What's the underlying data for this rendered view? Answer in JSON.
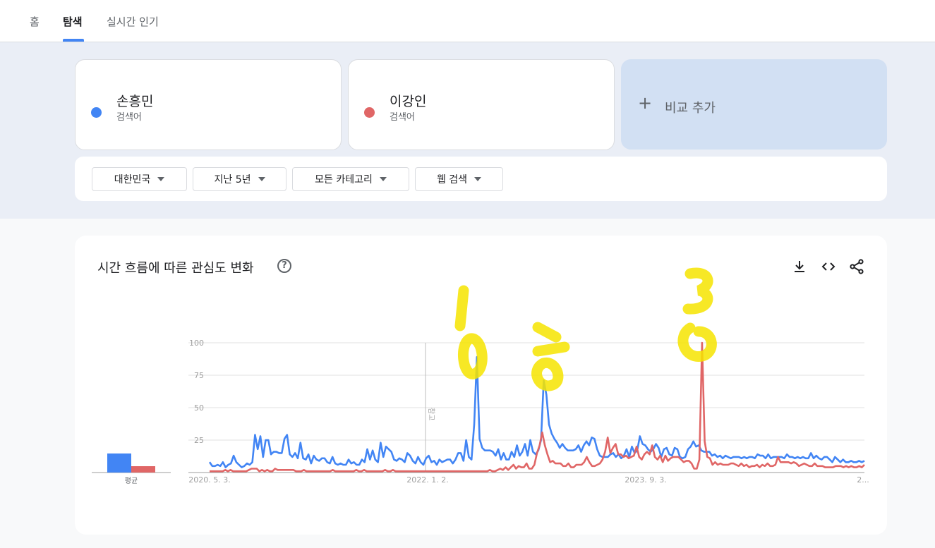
{
  "nav": {
    "tabs": [
      {
        "label": "홈"
      },
      {
        "label": "탐색"
      },
      {
        "label": "실시간 인기"
      }
    ]
  },
  "terms": [
    {
      "name": "손흥민",
      "sub": "검색어",
      "color": "#4285f4"
    },
    {
      "name": "이강인",
      "sub": "검색어",
      "color": "#e06666"
    }
  ],
  "add_compare": {
    "label": "비교 추가"
  },
  "filters": [
    {
      "label": "대한민국"
    },
    {
      "label": "지난 5년"
    },
    {
      "label": "모든 카테고리"
    },
    {
      "label": "웹 검색"
    }
  ],
  "chart": {
    "title": "시간 흐름에 따른 관심도 변화",
    "avg_label": "평균",
    "note_label": "참고"
  },
  "annotations": [
    "1",
    "2",
    "3"
  ],
  "chart_data": {
    "type": "line",
    "x_tick_labels": [
      "2020. 5. 3.",
      "2022. 1. 2.",
      "2023. 9. 3.",
      "2..."
    ],
    "y_ticks": [
      100,
      75,
      50,
      25
    ],
    "ylim": [
      0,
      100
    ],
    "grid": true,
    "averages": [
      {
        "name": "손흥민",
        "value": 15
      },
      {
        "name": "이강인",
        "value": 5
      }
    ],
    "series": [
      {
        "name": "손흥민",
        "color": "#4285f4",
        "values": [
          8,
          5,
          5,
          6,
          5,
          8,
          4,
          6,
          7,
          13,
          8,
          6,
          4,
          5,
          7,
          6,
          8,
          29,
          18,
          28,
          12,
          25,
          25,
          14,
          16,
          16,
          15,
          15,
          26,
          29,
          14,
          12,
          15,
          11,
          23,
          11,
          10,
          14,
          7,
          13,
          10,
          9,
          11,
          11,
          8,
          7,
          12,
          7,
          6,
          7,
          6,
          6,
          10,
          7,
          8,
          6,
          6,
          10,
          8,
          18,
          10,
          17,
          10,
          8,
          23,
          12,
          20,
          18,
          16,
          10,
          9,
          11,
          10,
          8,
          15,
          13,
          9,
          7,
          12,
          8,
          6,
          11,
          13,
          8,
          9,
          6,
          10,
          8,
          9,
          10,
          10,
          7,
          10,
          15,
          15,
          9,
          25,
          12,
          10,
          37,
          89,
          26,
          19,
          17,
          17,
          17,
          16,
          13,
          18,
          10,
          15,
          10,
          10,
          16,
          12,
          21,
          13,
          16,
          22,
          13,
          25,
          16,
          14,
          17,
          25,
          71,
          60,
          37,
          30,
          26,
          23,
          19,
          22,
          19,
          17,
          17,
          17,
          18,
          21,
          16,
          21,
          24,
          21,
          27,
          26,
          18,
          13,
          12,
          12,
          12,
          14,
          15,
          12,
          14,
          11,
          13,
          18,
          12,
          20,
          15,
          17,
          28,
          22,
          21,
          18,
          16,
          18,
          22,
          19,
          12,
          18,
          19,
          14,
          13,
          19,
          18,
          12,
          11,
          12,
          18,
          20,
          24,
          20,
          21,
          17,
          16,
          16,
          16,
          13,
          14,
          12,
          13,
          11,
          13,
          12,
          11,
          12,
          12,
          12,
          11,
          12,
          11,
          12,
          12,
          11,
          14,
          13,
          13,
          11,
          14,
          11,
          12,
          12,
          12,
          12,
          11,
          14,
          12,
          12,
          11,
          12,
          11,
          12,
          11,
          11,
          15,
          11,
          13,
          11,
          10,
          12,
          12,
          10,
          8,
          12,
          10,
          8,
          10,
          8,
          8,
          9,
          8,
          8,
          9,
          8,
          9
        ]
      },
      {
        "name": "이강인",
        "color": "#e06666",
        "values": [
          1,
          1,
          1,
          1,
          1,
          1,
          2,
          1,
          2,
          1,
          1,
          1,
          1,
          1,
          1,
          2,
          3,
          3,
          3,
          1,
          2,
          1,
          2,
          1,
          1,
          3,
          2,
          2,
          2,
          2,
          2,
          2,
          2,
          1,
          1,
          1,
          2,
          1,
          1,
          1,
          1,
          1,
          1,
          1,
          1,
          1,
          1,
          2,
          1,
          1,
          1,
          1,
          1,
          1,
          1,
          1,
          2,
          1,
          1,
          2,
          1,
          1,
          1,
          1,
          1,
          1,
          1,
          2,
          1,
          1,
          2,
          1,
          1,
          1,
          1,
          1,
          1,
          1,
          1,
          1,
          1,
          1,
          1,
          1,
          1,
          1,
          1,
          1,
          1,
          1,
          1,
          1,
          1,
          1,
          1,
          1,
          1,
          1,
          1,
          1,
          1,
          1,
          1,
          1,
          1,
          1,
          1,
          2,
          1,
          1,
          2,
          3,
          2,
          4,
          2,
          4,
          6,
          3,
          5,
          4,
          4,
          7,
          3,
          3,
          6,
          15,
          21,
          31,
          21,
          14,
          8,
          9,
          7,
          7,
          7,
          5,
          5,
          7,
          4,
          4,
          6,
          6,
          6,
          8,
          12,
          8,
          5,
          5,
          6,
          7,
          10,
          16,
          27,
          15,
          19,
          22,
          14,
          14,
          12,
          13,
          11,
          12,
          13,
          20,
          12,
          10,
          14,
          16,
          14,
          21,
          12,
          10,
          13,
          8,
          13,
          9,
          11,
          12,
          12,
          12,
          10,
          8,
          9,
          9,
          7,
          3,
          3,
          10,
          100,
          24,
          12,
          11,
          6,
          8,
          6,
          7,
          6,
          6,
          6,
          7,
          7,
          6,
          5,
          7,
          5,
          6,
          4,
          5,
          5,
          6,
          4,
          6,
          5,
          7,
          5,
          5,
          6,
          12,
          8,
          8,
          8,
          8,
          7,
          8,
          7,
          5,
          6,
          7,
          6,
          5,
          5,
          7,
          5,
          5,
          5,
          4,
          4,
          4,
          4,
          5,
          5,
          5,
          4,
          5,
          4,
          5,
          4,
          4,
          5,
          4,
          6
        ]
      }
    ]
  }
}
